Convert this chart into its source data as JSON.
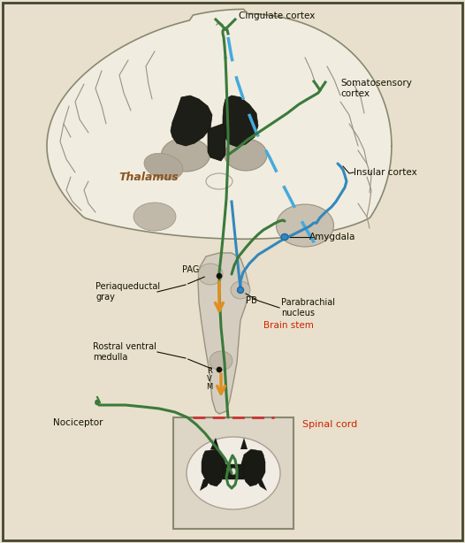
{
  "bg_color": "#e8e0cc",
  "brain_outer_color": "#f0ece0",
  "brain_edge_color": "#888870",
  "brain_gyri_color": "#e0d8c8",
  "brain_dark_color": "#3a3830",
  "brain_gray_color": "#b0a898",
  "stem_color": "#d8d0c0",
  "stem_edge": "#999988",
  "green_color": "#3a7a3a",
  "blue_color": "#3388bb",
  "blue_dashed_color": "#44aadd",
  "orange_color": "#e09020",
  "red_dashed_color": "#cc3333",
  "label_color": "#111100",
  "red_label_color": "#cc2200",
  "sc_bg": "#e0d8c8",
  "sc_wm": "#f0ece4",
  "sc_gm": "#1a1a14",
  "labels": {
    "cingulate": "Cingulate cortex",
    "somatosensory": "Somatosensory\ncortex",
    "insular": "Insular cortex",
    "thalamus": "Thalamus",
    "amygdala": "Amygdala",
    "pag_label": "Periaqueductal\ngray",
    "pag": "PAG",
    "pb": "PB",
    "parabrachial": "Parabrachial\nnucleus",
    "rostral": "Rostral ventral\nmedulla",
    "rvm": "R\nV\nM",
    "brainstem": "Brain stem",
    "nociceptor": "Nociceptor",
    "spinalcord": "Spinal cord"
  }
}
